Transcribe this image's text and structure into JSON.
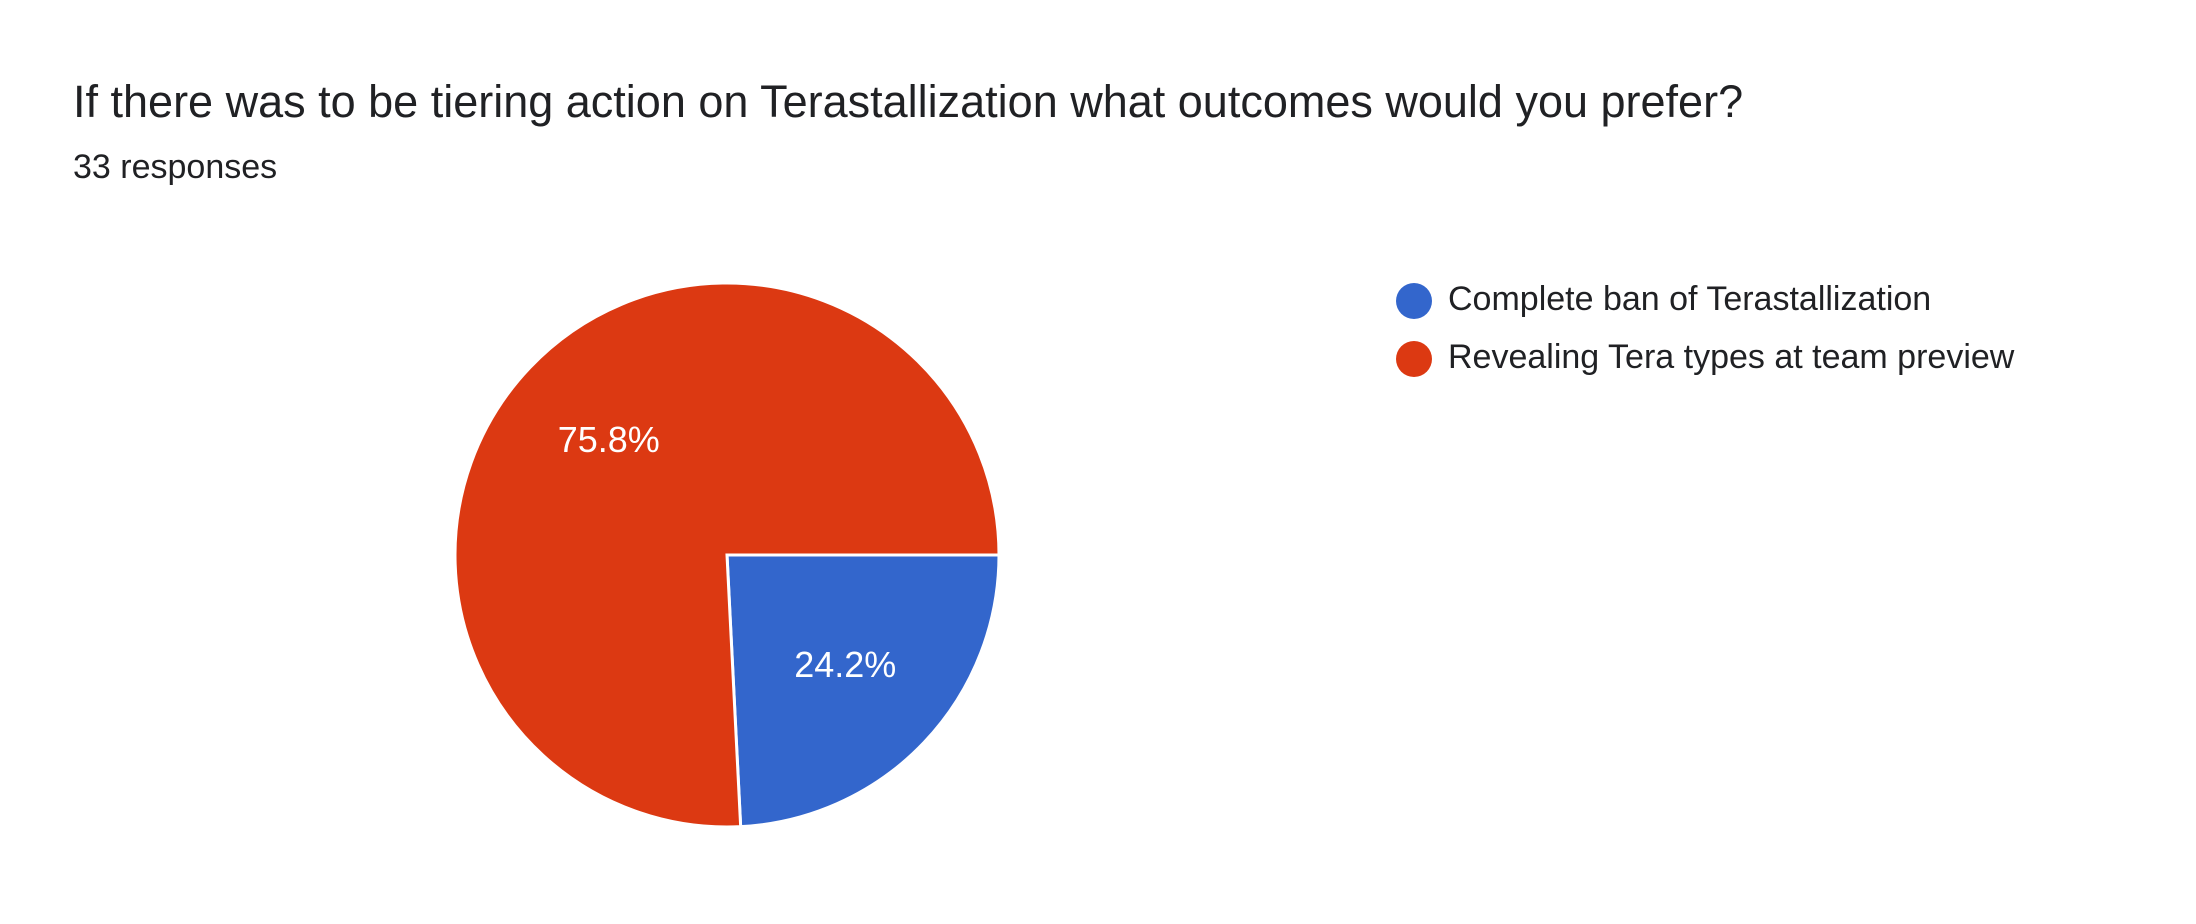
{
  "chart_data": {
    "type": "pie",
    "title": "If there was to be tiering action on Terastallization what outcomes would you prefer?",
    "subtitle": "33 responses",
    "categories": [
      "Complete ban of Terastallization",
      "Revealing Tera types at team preview"
    ],
    "values": [
      24.2,
      75.8
    ],
    "value_labels": [
      "24.2%",
      "75.8%"
    ],
    "colors": [
      "#3366cc",
      "#dc3912"
    ]
  }
}
